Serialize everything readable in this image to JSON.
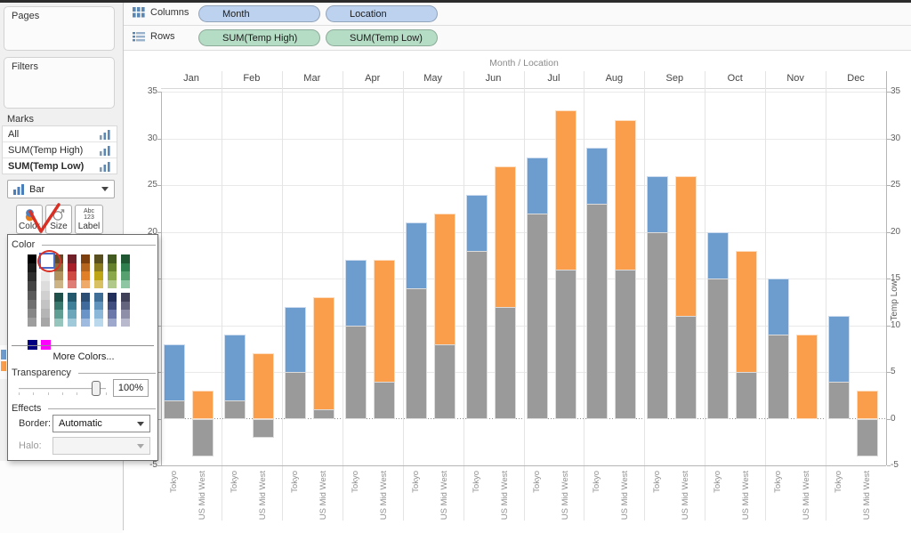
{
  "window": {
    "top_strip_color": "#2b2b2b"
  },
  "sidebar": {
    "pages": {
      "label": "Pages"
    },
    "filters": {
      "label": "Filters"
    },
    "marks": {
      "label": "Marks",
      "rows": [
        {
          "label": "All",
          "bold": false
        },
        {
          "label": "SUM(Temp High)",
          "bold": false
        },
        {
          "label": "SUM(Temp Low)",
          "bold": true
        }
      ],
      "mark_type": {
        "label": "Bar"
      },
      "buttons": [
        {
          "label": "Color",
          "icon": "color-icon"
        },
        {
          "label": "Size",
          "icon": "size-icon"
        },
        {
          "label": "Label",
          "icon": "label-icon"
        }
      ]
    },
    "legend_peek_colors": [
      "#6d9ccf",
      "#fa9e4b"
    ]
  },
  "shelves": {
    "columns": {
      "label": "Columns",
      "pills": [
        {
          "label": "Month",
          "type": "dimension"
        },
        {
          "label": "Location",
          "type": "dimension"
        }
      ]
    },
    "rows": {
      "label": "Rows",
      "pills": [
        {
          "label": "SUM(Temp High)",
          "type": "measure"
        },
        {
          "label": "SUM(Temp Low)",
          "type": "measure"
        }
      ]
    },
    "pill_colors": {
      "dimension": "#bcd2ef",
      "measure": "#b5dcc4"
    }
  },
  "color_dialog": {
    "title": "Color",
    "more_colors_label": "More Colors...",
    "transparency_label": "Transparency",
    "transparency_value": "100%",
    "effects_label": "Effects",
    "border_label": "Border:",
    "border_value": "Automatic",
    "halo_label": "Halo:",
    "palette": {
      "gray_columns": [
        [
          "#000000",
          "#191919",
          "#2e2e2e",
          "#444444",
          "#5a5a5a",
          "#707070",
          "#878787",
          "#9e9e9e"
        ],
        [
          "#ffffff",
          "#f4f4f4",
          "#e9e9e9",
          "#dddddd",
          "#d0d0d0",
          "#c3c3c3",
          "#b5b5b5",
          "#a7a7a7"
        ]
      ],
      "top_row": [
        [
          "#60492a",
          "#8a6d3e",
          "#b2935f",
          "#cdb487"
        ],
        [
          "#6f2028",
          "#a81e29",
          "#ce4a43",
          "#df7e77"
        ],
        [
          "#7d3f0e",
          "#b5651d",
          "#e07f28",
          "#efa968"
        ],
        [
          "#594f1e",
          "#8a7a20",
          "#bda515",
          "#d7c162"
        ],
        [
          "#425a20",
          "#66812d",
          "#8ba94b",
          "#b1ca89"
        ],
        [
          "#1f5733",
          "#2f7e4d",
          "#56a06f",
          "#8ec6a3"
        ]
      ],
      "bottom_row": [
        [
          "#20504a",
          "#3a776d",
          "#609e94",
          "#95c5bd"
        ],
        [
          "#24586d",
          "#3f7f98",
          "#6ba6bb",
          "#a0c9d9"
        ],
        [
          "#2c4d74",
          "#40699c",
          "#6a93c7",
          "#9ebade"
        ],
        [
          "#3f6f97",
          "#6094bc",
          "#8bb8d9",
          "#b9d8eb"
        ],
        [
          "#232f5b",
          "#3f4d7f",
          "#6b78a9",
          "#9ea8cc"
        ],
        [
          "#404059",
          "#64647f",
          "#8e8ea9",
          "#b9b9ce"
        ]
      ],
      "extra_swatches": [
        "#000080",
        "#ff00ff"
      ],
      "selected_swatch": "#ffffff"
    }
  },
  "annotations": {
    "color": "#d93025",
    "items": [
      "check-over-color-button",
      "circle-over-white-swatch"
    ]
  },
  "chart_data": {
    "type": "bar",
    "title": "Month / Location",
    "months": [
      "Jan",
      "Feb",
      "Mar",
      "Apr",
      "May",
      "Jun",
      "Jul",
      "Aug",
      "Sep",
      "Oct",
      "Nov",
      "Dec"
    ],
    "locations": [
      "Tokyo",
      "US Mid West"
    ],
    "series": [
      {
        "name": "Temp High Tokyo",
        "measure": "Temp High",
        "location": "Tokyo",
        "color": "#6d9ccf",
        "values": [
          8,
          9,
          12,
          17,
          21,
          24,
          28,
          29,
          26,
          20,
          15,
          11
        ]
      },
      {
        "name": "Temp High US Mid West",
        "measure": "Temp High",
        "location": "US Mid West",
        "color": "#fa9e4b",
        "values": [
          3,
          7,
          13,
          17,
          22,
          27,
          33,
          32,
          26,
          18,
          9,
          3
        ]
      },
      {
        "name": "Temp Low Tokyo",
        "measure": "Temp Low",
        "location": "Tokyo",
        "color": "#9a9a9a",
        "values": [
          2,
          2,
          5,
          10,
          14,
          18,
          22,
          23,
          20,
          15,
          9,
          4
        ]
      },
      {
        "name": "Temp Low US Mid West",
        "measure": "Temp Low",
        "location": "US Mid West",
        "color": "#9a9a9a",
        "values": [
          -4,
          -2,
          1,
          4,
          8,
          12,
          16,
          16,
          11,
          5,
          0,
          -4
        ]
      }
    ],
    "y_axis": {
      "min": -5,
      "max": 35,
      "ticks": [
        35,
        30,
        25,
        20,
        15,
        10,
        5,
        0,
        -5
      ]
    },
    "right_axis_label": "Temp Low",
    "grid": true,
    "legend_position": "none"
  }
}
